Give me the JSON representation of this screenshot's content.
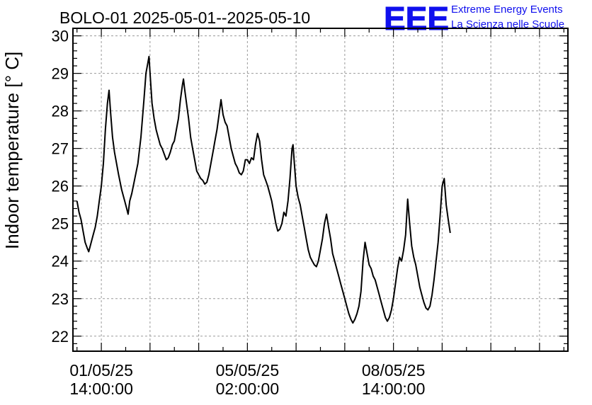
{
  "header": {
    "title": "BOLO-01 2025-05-01--2025-05-10",
    "logo": {
      "mark": "EEE",
      "line1": "Extreme Energy Events",
      "line2": "La Scienza nelle Scuole",
      "color": "#1010ee"
    }
  },
  "chart_data": {
    "type": "line",
    "title": "BOLO-01 2025-05-01--2025-05-10",
    "xlabel": "",
    "ylabel": "Indoor temperature [° C]",
    "ylim": [
      21.6,
      30.2
    ],
    "xlim_hours": [
      -14,
      230
    ],
    "y_ticks": [
      22,
      23,
      24,
      25,
      26,
      27,
      28,
      29,
      30
    ],
    "grid": true,
    "x_tick_labels": [
      {
        "hour": 0,
        "line1": "01/05/25",
        "line2": "14:00:00"
      },
      {
        "hour": 72,
        "line1": "05/05/25",
        "line2": "02:00:00"
      },
      {
        "hour": 144,
        "line1": "08/05/25",
        "line2": "14:00:00"
      }
    ],
    "series": [
      {
        "color": "#000000",
        "points": [
          [
            -12,
            25.6
          ],
          [
            -11,
            25.3
          ],
          [
            -10,
            25.1
          ],
          [
            -9,
            24.8
          ],
          [
            -8,
            24.5
          ],
          [
            -7,
            24.35
          ],
          [
            -6.2,
            24.25
          ],
          [
            -5,
            24.5
          ],
          [
            -4,
            24.7
          ],
          [
            -3,
            24.9
          ],
          [
            -2,
            25.2
          ],
          [
            -1,
            25.6
          ],
          [
            0,
            26.0
          ],
          [
            1,
            26.6
          ],
          [
            2,
            27.5
          ],
          [
            3,
            28.2
          ],
          [
            3.8,
            28.55
          ],
          [
            4.5,
            28.0
          ],
          [
            5.5,
            27.3
          ],
          [
            6.5,
            26.9
          ],
          [
            7.5,
            26.6
          ],
          [
            8.5,
            26.3
          ],
          [
            10,
            25.9
          ],
          [
            11.5,
            25.6
          ],
          [
            12.5,
            25.4
          ],
          [
            13.2,
            25.25
          ],
          [
            14,
            25.6
          ],
          [
            15,
            25.8
          ],
          [
            16.5,
            26.2
          ],
          [
            18,
            26.6
          ],
          [
            19.5,
            27.3
          ],
          [
            21,
            28.3
          ],
          [
            22,
            29.0
          ],
          [
            23,
            29.3
          ],
          [
            23.5,
            29.45
          ],
          [
            24,
            29.0
          ],
          [
            25,
            28.2
          ],
          [
            26,
            27.8
          ],
          [
            27,
            27.5
          ],
          [
            28,
            27.3
          ],
          [
            29,
            27.1
          ],
          [
            30,
            27.0
          ],
          [
            31,
            26.85
          ],
          [
            32,
            26.7
          ],
          [
            33,
            26.75
          ],
          [
            34,
            26.9
          ],
          [
            35,
            27.1
          ],
          [
            36,
            27.2
          ],
          [
            37,
            27.5
          ],
          [
            38,
            27.8
          ],
          [
            39,
            28.3
          ],
          [
            40,
            28.7
          ],
          [
            40.5,
            28.85
          ],
          [
            41,
            28.6
          ],
          [
            42,
            28.2
          ],
          [
            43,
            27.8
          ],
          [
            44,
            27.3
          ],
          [
            45,
            27.0
          ],
          [
            46,
            26.7
          ],
          [
            47,
            26.4
          ],
          [
            48,
            26.3
          ],
          [
            49,
            26.2
          ],
          [
            50,
            26.15
          ],
          [
            51,
            26.05
          ],
          [
            52,
            26.1
          ],
          [
            53,
            26.3
          ],
          [
            54,
            26.6
          ],
          [
            55,
            26.9
          ],
          [
            56,
            27.2
          ],
          [
            57,
            27.5
          ],
          [
            58,
            27.9
          ],
          [
            59,
            28.3
          ],
          [
            60,
            27.9
          ],
          [
            61,
            27.7
          ],
          [
            62,
            27.6
          ],
          [
            63,
            27.3
          ],
          [
            64,
            27.0
          ],
          [
            65,
            26.8
          ],
          [
            66,
            26.6
          ],
          [
            67,
            26.5
          ],
          [
            68,
            26.35
          ],
          [
            69,
            26.3
          ],
          [
            70,
            26.4
          ],
          [
            71,
            26.7
          ],
          [
            72,
            26.7
          ],
          [
            73,
            26.6
          ],
          [
            74,
            26.75
          ],
          [
            75,
            26.7
          ],
          [
            76,
            27.1
          ],
          [
            77,
            27.4
          ],
          [
            78,
            27.2
          ],
          [
            79,
            26.7
          ],
          [
            80,
            26.3
          ],
          [
            81,
            26.15
          ],
          [
            82,
            26.0
          ],
          [
            83,
            25.8
          ],
          [
            84,
            25.6
          ],
          [
            85,
            25.3
          ],
          [
            86,
            25.0
          ],
          [
            87,
            24.8
          ],
          [
            88,
            24.85
          ],
          [
            89,
            25.0
          ],
          [
            90,
            25.3
          ],
          [
            91,
            25.2
          ],
          [
            92,
            25.6
          ],
          [
            93,
            26.2
          ],
          [
            94,
            27.0
          ],
          [
            94.5,
            27.1
          ],
          [
            95,
            26.7
          ],
          [
            96,
            26.0
          ],
          [
            97,
            25.7
          ],
          [
            98,
            25.5
          ],
          [
            99,
            25.2
          ],
          [
            100,
            24.9
          ],
          [
            101,
            24.6
          ],
          [
            102,
            24.3
          ],
          [
            103,
            24.1
          ],
          [
            104,
            24.0
          ],
          [
            105,
            23.9
          ],
          [
            106,
            23.85
          ],
          [
            107,
            24.0
          ],
          [
            108,
            24.3
          ],
          [
            109,
            24.6
          ],
          [
            110,
            25.0
          ],
          [
            111,
            25.25
          ],
          [
            112,
            24.9
          ],
          [
            113,
            24.6
          ],
          [
            114,
            24.2
          ],
          [
            115,
            24.0
          ],
          [
            116,
            23.8
          ],
          [
            117,
            23.6
          ],
          [
            118,
            23.4
          ],
          [
            119,
            23.2
          ],
          [
            120,
            23.0
          ],
          [
            121,
            22.8
          ],
          [
            122,
            22.6
          ],
          [
            123,
            22.45
          ],
          [
            124,
            22.35
          ],
          [
            125,
            22.45
          ],
          [
            126,
            22.6
          ],
          [
            127,
            22.8
          ],
          [
            128,
            23.2
          ],
          [
            129,
            24.0
          ],
          [
            130,
            24.5
          ],
          [
            131,
            24.2
          ],
          [
            132,
            23.9
          ],
          [
            133,
            23.8
          ],
          [
            134,
            23.6
          ],
          [
            135,
            23.5
          ],
          [
            136,
            23.3
          ],
          [
            137,
            23.1
          ],
          [
            138,
            22.9
          ],
          [
            139,
            22.7
          ],
          [
            140,
            22.5
          ],
          [
            141,
            22.4
          ],
          [
            142,
            22.5
          ],
          [
            143,
            22.7
          ],
          [
            144,
            23.0
          ],
          [
            145,
            23.4
          ],
          [
            146,
            23.8
          ],
          [
            147,
            24.1
          ],
          [
            148,
            24.0
          ],
          [
            149,
            24.3
          ],
          [
            150,
            24.7
          ],
          [
            151,
            25.65
          ],
          [
            152,
            25.0
          ],
          [
            153,
            24.4
          ],
          [
            154,
            24.1
          ],
          [
            155,
            23.9
          ],
          [
            156,
            23.6
          ],
          [
            157,
            23.3
          ],
          [
            158,
            23.1
          ],
          [
            159,
            22.9
          ],
          [
            160,
            22.75
          ],
          [
            161,
            22.7
          ],
          [
            162,
            22.8
          ],
          [
            163,
            23.1
          ],
          [
            164,
            23.5
          ],
          [
            165,
            24.0
          ],
          [
            166,
            24.5
          ],
          [
            167,
            25.2
          ],
          [
            168,
            26.0
          ],
          [
            169,
            26.2
          ],
          [
            170,
            25.5
          ],
          [
            171,
            25.1
          ],
          [
            172,
            24.75
          ]
        ]
      }
    ]
  }
}
